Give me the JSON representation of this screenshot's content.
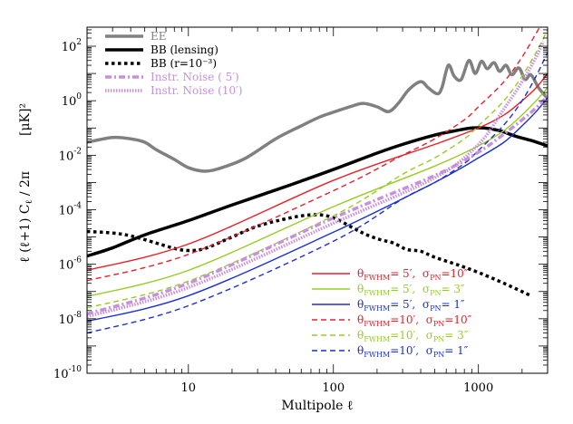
{
  "chart_data": {
    "type": "line",
    "xlabel": "Multipole  ℓ",
    "ylabel_parts": [
      "ℓ (ℓ+1)  C",
      "ℓ",
      "  /  2π"
    ],
    "yunit": "[μK]²",
    "x_scale": "log",
    "y_scale": "log",
    "xlim": [
      2,
      3000
    ],
    "ylim": [
      1e-10,
      500
    ],
    "x_ticks": [
      {
        "v": 10,
        "label": "10"
      },
      {
        "v": 100,
        "label": "100"
      },
      {
        "v": 1000,
        "label": "1000"
      }
    ],
    "y_ticks": [
      {
        "v": 1e-10,
        "base": "10",
        "exp": "-10"
      },
      {
        "v": 1e-08,
        "base": "10",
        "exp": "-8"
      },
      {
        "v": 1e-06,
        "base": "10",
        "exp": "-6"
      },
      {
        "v": 0.0001,
        "base": "10",
        "exp": "-4"
      },
      {
        "v": 0.01,
        "base": "10",
        "exp": "-2"
      },
      {
        "v": 1,
        "base": "10",
        "exp": "0"
      },
      {
        "v": 100,
        "base": "10",
        "exp": "2"
      }
    ],
    "grid": false,
    "legend_top": {
      "placement": "top-left",
      "entries": [
        {
          "label": "EE",
          "color": "#808080",
          "style": "solid",
          "width": 3.5
        },
        {
          "label": "BB (lensing)",
          "color": "#000000",
          "style": "solid",
          "width": 3.5
        },
        {
          "label": "BB (r=10⁻³)",
          "color": "#000000",
          "style": "dotted",
          "width": 3.5
        },
        {
          "label": "Instr. Noise ( 5′)",
          "color": "#c890dc",
          "style": "dashdot",
          "width": 3.5
        },
        {
          "label": "Instr. Noise (10′)",
          "color": "#c890dc",
          "style": "densedot",
          "width": 3.5
        }
      ]
    },
    "legend_bottom": {
      "placement": "bottom-right",
      "entries": [
        {
          "theta": "θ",
          "theta_sub": "FWHM",
          "theta_val": "= 5′,",
          "sigma": "σ",
          "sigma_sub": "PN",
          "sigma_val": "=10″",
          "color": "#e8202a",
          "style": "solid"
        },
        {
          "theta": "θ",
          "theta_sub": "FWHM",
          "theta_val": "= 5′,",
          "sigma": "σ",
          "sigma_sub": "PN",
          "sigma_val": "= 3″",
          "color": "#96cd23",
          "style": "solid"
        },
        {
          "theta": "θ",
          "theta_sub": "FWHM",
          "theta_val": "= 5′,",
          "sigma": "σ",
          "sigma_sub": "PN",
          "sigma_val": "= 1″",
          "color": "#1b2fd6",
          "style": "solid"
        },
        {
          "theta": "θ",
          "theta_sub": "FWHM",
          "theta_val": "=10′,",
          "sigma": "σ",
          "sigma_sub": "PN",
          "sigma_val": "=10″",
          "color": "#e8202a",
          "style": "dashed"
        },
        {
          "theta": "θ",
          "theta_sub": "FWHM",
          "theta_val": "=10′,",
          "sigma": "σ",
          "sigma_sub": "PN",
          "sigma_val": "= 3″",
          "color": "#96cd23",
          "style": "dashed"
        },
        {
          "theta": "θ",
          "theta_sub": "FWHM",
          "theta_val": "=10′,",
          "sigma": "σ",
          "sigma_sub": "PN",
          "sigma_val": "= 1″",
          "color": "#1b2fd6",
          "style": "dashed"
        }
      ]
    },
    "series": [
      {
        "id": "ee",
        "name": "EE",
        "color": "#808080",
        "style": "solid",
        "width": 3.5,
        "points": [
          [
            2,
            0.03
          ],
          [
            3,
            0.045
          ],
          [
            4,
            0.04
          ],
          [
            5,
            0.03
          ],
          [
            6,
            0.016
          ],
          [
            8,
            0.007
          ],
          [
            10,
            0.0035
          ],
          [
            13,
            0.0026
          ],
          [
            17,
            0.0035
          ],
          [
            25,
            0.008
          ],
          [
            40,
            0.04
          ],
          [
            60,
            0.12
          ],
          [
            80,
            0.25
          ],
          [
            100,
            0.38
          ],
          [
            130,
            0.6
          ],
          [
            160,
            0.8
          ],
          [
            200,
            0.6
          ],
          [
            240,
            0.4
          ],
          [
            280,
            0.8
          ],
          [
            330,
            2.5
          ],
          [
            400,
            5
          ],
          [
            450,
            3
          ],
          [
            520,
            1.8
          ],
          [
            560,
            3
          ],
          [
            620,
            20
          ],
          [
            680,
            8
          ],
          [
            760,
            6
          ],
          [
            860,
            30
          ],
          [
            950,
            10
          ],
          [
            1050,
            28
          ],
          [
            1150,
            15
          ],
          [
            1280,
            25
          ],
          [
            1400,
            12
          ],
          [
            1550,
            20
          ],
          [
            1700,
            9
          ],
          [
            1900,
            16
          ],
          [
            2100,
            6
          ],
          [
            2300,
            9
          ],
          [
            2600,
            3
          ],
          [
            3000,
            1.2
          ]
        ]
      },
      {
        "id": "bb-lensing",
        "name": "BB (lensing)",
        "color": "#000000",
        "style": "solid",
        "width": 3.5,
        "points": [
          [
            2,
            2e-06
          ],
          [
            3,
            4e-06
          ],
          [
            5,
            1.2e-05
          ],
          [
            10,
            4e-05
          ],
          [
            20,
            0.00015
          ],
          [
            50,
            0.0008
          ],
          [
            100,
            0.003
          ],
          [
            200,
            0.012
          ],
          [
            300,
            0.025
          ],
          [
            500,
            0.055
          ],
          [
            700,
            0.08
          ],
          [
            900,
            0.1
          ],
          [
            1100,
            0.1
          ],
          [
            1400,
            0.08
          ],
          [
            1800,
            0.05
          ],
          [
            2300,
            0.035
          ],
          [
            3000,
            0.022
          ]
        ]
      },
      {
        "id": "bb-r",
        "name": "BB (r=10⁻³)",
        "color": "#000000",
        "style": "dotted",
        "width": 3.5,
        "points": [
          [
            2,
            1.6e-05
          ],
          [
            3,
            1.4e-05
          ],
          [
            4,
            1.1e-05
          ],
          [
            6,
            6e-06
          ],
          [
            8,
            3.8e-06
          ],
          [
            10,
            3.2e-06
          ],
          [
            13,
            3.8e-06
          ],
          [
            20,
            1e-05
          ],
          [
            30,
            2.5e-05
          ],
          [
            50,
            5e-05
          ],
          [
            70,
            6.5e-05
          ],
          [
            90,
            6e-05
          ],
          [
            110,
            4e-05
          ],
          [
            140,
            2e-05
          ],
          [
            170,
            1.2e-05
          ],
          [
            210,
            8e-06
          ],
          [
            260,
            6e-06
          ],
          [
            320,
            3.5e-06
          ],
          [
            400,
            3e-06
          ],
          [
            500,
            1.8e-06
          ],
          [
            700,
            1e-06
          ],
          [
            1000,
            5e-07
          ],
          [
            1500,
            2e-07
          ],
          [
            2300,
            7e-08
          ]
        ]
      },
      {
        "id": "n5-10",
        "name": "θ 5′, σ 10″",
        "color": "#e8202a",
        "style": "solid",
        "width": 1.4,
        "points": [
          [
            2,
            6e-07
          ],
          [
            10,
            5.5e-06
          ],
          [
            100,
            0.0012
          ],
          [
            500,
            0.025
          ],
          [
            1000,
            0.1
          ],
          [
            1500,
            0.3
          ],
          [
            2000,
            1
          ],
          [
            2500,
            3
          ],
          [
            3000,
            10
          ]
        ]
      },
      {
        "id": "n5-3",
        "name": "θ 5′, σ 3″",
        "color": "#96cd23",
        "style": "solid",
        "width": 1.4,
        "points": [
          [
            2,
            6.5e-08
          ],
          [
            10,
            6e-07
          ],
          [
            100,
            0.00013
          ],
          [
            500,
            0.004
          ],
          [
            1000,
            0.022
          ],
          [
            1500,
            0.08
          ],
          [
            2000,
            0.3
          ],
          [
            2500,
            1
          ],
          [
            3000,
            3
          ]
        ]
      },
      {
        "id": "n5-1",
        "name": "θ 5′, σ 1″",
        "color": "#1b2fd6",
        "style": "solid",
        "width": 1.4,
        "points": [
          [
            2,
            8e-09
          ],
          [
            10,
            7e-08
          ],
          [
            100,
            1.5e-05
          ],
          [
            500,
            0.001
          ],
          [
            1000,
            0.008
          ],
          [
            1500,
            0.03
          ],
          [
            2000,
            0.12
          ],
          [
            2500,
            0.4
          ],
          [
            3000,
            1.3
          ]
        ]
      },
      {
        "id": "n10-10",
        "name": "θ 10′, σ 10″",
        "color": "#e8202a",
        "style": "dashed",
        "width": 1.4,
        "points": [
          [
            2,
            2.5e-07
          ],
          [
            10,
            2.3e-06
          ],
          [
            100,
            0.0005
          ],
          [
            300,
            0.01
          ],
          [
            500,
            0.04
          ],
          [
            800,
            0.2
          ],
          [
            1000,
            0.6
          ],
          [
            1500,
            5
          ],
          [
            2000,
            40
          ],
          [
            2500,
            300
          ],
          [
            2700,
            600
          ]
        ]
      },
      {
        "id": "n10-3",
        "name": "θ 10′, σ 3″",
        "color": "#96cd23",
        "style": "dashed",
        "width": 1.4,
        "points": [
          [
            2,
            2.5e-08
          ],
          [
            10,
            2.4e-07
          ],
          [
            100,
            6e-05
          ],
          [
            300,
            0.002
          ],
          [
            500,
            0.008
          ],
          [
            800,
            0.04
          ],
          [
            1000,
            0.12
          ],
          [
            1500,
            1
          ],
          [
            2000,
            8
          ],
          [
            2500,
            60
          ],
          [
            3000,
            400
          ]
        ]
      },
      {
        "id": "n10-1",
        "name": "θ 10′, σ 1″",
        "color": "#1b2fd6",
        "style": "dashed",
        "width": 1.4,
        "points": [
          [
            2,
            3e-09
          ],
          [
            10,
            3e-08
          ],
          [
            100,
            7e-06
          ],
          [
            300,
            0.00025
          ],
          [
            500,
            0.001
          ],
          [
            800,
            0.005
          ],
          [
            1000,
            0.015
          ],
          [
            1500,
            0.13
          ],
          [
            2000,
            1
          ],
          [
            2500,
            8
          ],
          [
            3000,
            60
          ]
        ]
      },
      {
        "id": "instr-5",
        "name": "Instr. Noise ( 5′)",
        "color": "#c890dc",
        "style": "dashdot",
        "width": 3.5,
        "points": [
          [
            2,
            1.5e-08
          ],
          [
            10,
            2e-07
          ],
          [
            100,
            5e-05
          ],
          [
            500,
            0.0018
          ],
          [
            1000,
            0.013
          ],
          [
            1500,
            0.06
          ],
          [
            2000,
            0.2
          ],
          [
            2500,
            0.55
          ],
          [
            3000,
            1.5
          ]
        ]
      },
      {
        "id": "instr-10",
        "name": "Instr. Noise (10′)",
        "color": "#c890dc",
        "style": "densedot",
        "width": 3.5,
        "points": [
          [
            2,
            1.2e-08
          ],
          [
            10,
            1.4e-07
          ],
          [
            100,
            3.2e-05
          ],
          [
            500,
            0.0015
          ],
          [
            1000,
            0.025
          ],
          [
            1500,
            0.5
          ],
          [
            2000,
            5
          ],
          [
            2500,
            40
          ],
          [
            2800,
            150
          ]
        ]
      }
    ]
  }
}
